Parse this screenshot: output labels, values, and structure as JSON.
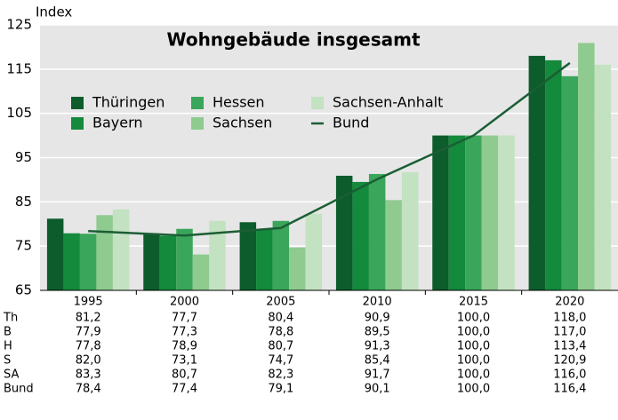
{
  "chart_data": {
    "type": "bar",
    "title": "Wohngebäude insgesamt",
    "y_label": "Index",
    "categories": [
      "1995",
      "2000",
      "2005",
      "2010",
      "2015",
      "2020"
    ],
    "ylim": [
      65,
      125
    ],
    "yticks": [
      65,
      75,
      85,
      95,
      105,
      115,
      125
    ],
    "grid": true,
    "series": [
      {
        "name": "Thüringen",
        "short": "Th",
        "kind": "bar",
        "color": "#0d5c2c",
        "values": [
          81.2,
          77.7,
          80.4,
          90.9,
          100.0,
          118.0
        ],
        "value_labels": [
          "81,2",
          "77,7",
          "80,4",
          "90,9",
          "100,0",
          "118,0"
        ]
      },
      {
        "name": "Bayern",
        "short": "B",
        "kind": "bar",
        "color": "#138a3c",
        "values": [
          77.9,
          77.3,
          78.8,
          89.5,
          100.0,
          117.0
        ],
        "value_labels": [
          "77,9",
          "77,3",
          "78,8",
          "89,5",
          "100,0",
          "117,0"
        ]
      },
      {
        "name": "Hessen",
        "short": "H",
        "kind": "bar",
        "color": "#3aa65b",
        "values": [
          77.8,
          78.9,
          80.7,
          91.3,
          100.0,
          113.4
        ],
        "value_labels": [
          "77,8",
          "78,9",
          "80,7",
          "91,3",
          "100,0",
          "113,4"
        ]
      },
      {
        "name": "Sachsen",
        "short": "S",
        "kind": "bar",
        "color": "#8fca8f",
        "values": [
          82.0,
          73.1,
          74.7,
          85.4,
          100.0,
          120.9
        ],
        "value_labels": [
          "82,0",
          "73,1",
          "74,7",
          "85,4",
          "100,0",
          "120,9"
        ]
      },
      {
        "name": "Sachsen-Anhalt",
        "short": "SA",
        "kind": "bar",
        "color": "#c3e2c1",
        "values": [
          83.3,
          80.7,
          82.3,
          91.7,
          100.0,
          116.0
        ],
        "value_labels": [
          "83,3",
          "80,7",
          "82,3",
          "91,7",
          "100,0",
          "116,0"
        ]
      },
      {
        "name": "Bund",
        "short": "Bund",
        "kind": "line",
        "color": "#1b5e35",
        "values": [
          78.4,
          77.4,
          79.1,
          90.1,
          100.0,
          116.4
        ],
        "value_labels": [
          "78,4",
          "77,4",
          "79,1",
          "90,1",
          "100,0",
          "116,4"
        ]
      }
    ]
  }
}
